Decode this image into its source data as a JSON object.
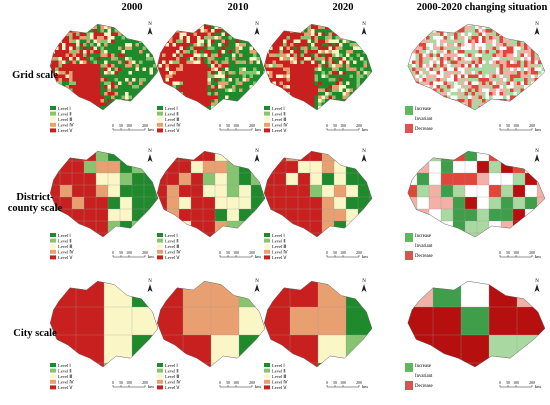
{
  "columns": [
    "2000",
    "2010",
    "2020",
    "2000-2020 changing situation"
  ],
  "rows": [
    "Grid scale",
    "District-county scale",
    "City scale"
  ],
  "legend_levels": [
    "Level Ⅰ",
    "Level Ⅱ",
    "Level Ⅲ",
    "Level Ⅳ",
    "Level Ⅴ"
  ],
  "change_legend": [
    "Increase",
    "Invariant",
    "Decrease"
  ],
  "scale_bar": {
    "ticks": [
      0,
      50,
      100,
      200
    ],
    "unit": "km"
  },
  "north": "N"
}
